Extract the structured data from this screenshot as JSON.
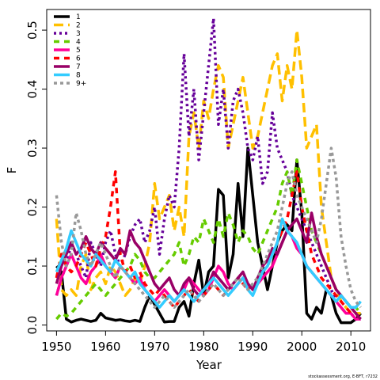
{
  "chart_data": {
    "type": "line",
    "title": "",
    "xlabel": "Year",
    "ylabel": "F",
    "xlim": [
      1948,
      2014
    ],
    "ylim": [
      -0.01,
      0.535
    ],
    "x_ticks": [
      1950,
      1960,
      1970,
      1980,
      1990,
      2000,
      2010
    ],
    "y_ticks": [
      0.0,
      0.1,
      0.2,
      0.3,
      0.4,
      0.5
    ],
    "y_tick_labels": [
      "0.0",
      "0.1",
      "0.2",
      "0.3",
      "0.4",
      "0.5"
    ],
    "legend_position": "top-left",
    "grid": false,
    "credit": "stockassessment.org, E-BFT, r7232",
    "years_start": 1950,
    "series": [
      {
        "name": "1",
        "color": "#000000",
        "dash": "",
        "values": [
          0.1,
          0.09,
          0.01,
          0.005,
          0.008,
          0.01,
          0.008,
          0.006,
          0.008,
          0.02,
          0.012,
          0.01,
          0.008,
          0.009,
          0.007,
          0.006,
          0.008,
          0.006,
          0.03,
          0.05,
          0.035,
          0.02,
          0.005,
          0.006,
          0.006,
          0.03,
          0.04,
          0.015,
          0.07,
          0.11,
          0.05,
          0.09,
          0.1,
          0.23,
          0.22,
          0.08,
          0.12,
          0.24,
          0.15,
          0.3,
          0.22,
          0.14,
          0.1,
          0.06,
          0.1,
          0.14,
          0.16,
          0.17,
          0.16,
          0.28,
          0.19,
          0.02,
          0.01,
          0.03,
          0.02,
          0.06,
          0.05,
          0.02,
          0.004,
          0.004,
          0.004,
          0.01,
          0.02
        ]
      },
      {
        "name": "2",
        "color": "#ffc000",
        "dash": "12,6",
        "values": [
          0.18,
          0.06,
          0.05,
          0.06,
          0.05,
          0.1,
          0.12,
          0.06,
          0.08,
          0.09,
          0.07,
          0.1,
          0.09,
          0.07,
          0.05,
          0.06,
          0.08,
          0.07,
          0.1,
          0.14,
          0.24,
          0.18,
          0.2,
          0.22,
          0.16,
          0.2,
          0.15,
          0.32,
          0.36,
          0.3,
          0.38,
          0.35,
          0.4,
          0.44,
          0.42,
          0.3,
          0.34,
          0.38,
          0.42,
          0.36,
          0.3,
          0.32,
          0.36,
          0.4,
          0.44,
          0.46,
          0.38,
          0.44,
          0.4,
          0.5,
          0.42,
          0.3,
          0.32,
          0.34,
          0.2,
          0.14,
          0.08,
          0.06,
          0.04,
          0.03,
          0.02,
          0.02,
          0.02
        ]
      },
      {
        "name": "3",
        "color": "#660099",
        "dash": "3,4",
        "values": [
          0.05,
          0.08,
          0.1,
          0.14,
          0.12,
          0.1,
          0.08,
          0.14,
          0.12,
          0.1,
          0.14,
          0.16,
          0.12,
          0.1,
          0.12,
          0.15,
          0.17,
          0.18,
          0.14,
          0.16,
          0.2,
          0.12,
          0.18,
          0.22,
          0.2,
          0.3,
          0.46,
          0.32,
          0.4,
          0.28,
          0.36,
          0.44,
          0.52,
          0.34,
          0.4,
          0.3,
          0.38,
          0.4,
          0.36,
          0.3,
          0.28,
          0.32,
          0.24,
          0.26,
          0.36,
          0.3,
          0.28,
          0.26,
          0.22,
          0.2,
          0.18,
          0.16,
          0.14,
          0.12,
          0.1,
          0.08,
          0.06,
          0.04,
          0.03,
          0.02,
          0.02,
          0.01,
          0.01
        ]
      },
      {
        "name": "4",
        "color": "#66cc00",
        "dash": "7,6",
        "values": [
          0.01,
          0.02,
          0.015,
          0.02,
          0.03,
          0.04,
          0.05,
          0.06,
          0.07,
          0.06,
          0.05,
          0.06,
          0.07,
          0.08,
          0.09,
          0.1,
          0.12,
          0.11,
          0.09,
          0.08,
          0.08,
          0.09,
          0.1,
          0.11,
          0.12,
          0.14,
          0.1,
          0.12,
          0.15,
          0.14,
          0.18,
          0.16,
          0.14,
          0.18,
          0.15,
          0.19,
          0.17,
          0.14,
          0.16,
          0.15,
          0.13,
          0.12,
          0.14,
          0.16,
          0.18,
          0.2,
          0.24,
          0.26,
          0.22,
          0.28,
          0.24,
          0.2,
          0.16,
          0.14,
          0.12,
          0.1,
          0.08,
          0.06,
          0.05,
          0.04,
          0.03,
          0.03,
          0.02
        ]
      },
      {
        "name": "5",
        "color": "#ff0099",
        "dash": "",
        "values": [
          0.05,
          0.08,
          0.1,
          0.12,
          0.1,
          0.08,
          0.07,
          0.09,
          0.1,
          0.12,
          0.1,
          0.09,
          0.08,
          0.1,
          0.09,
          0.08,
          0.07,
          0.08,
          0.06,
          0.05,
          0.04,
          0.05,
          0.06,
          0.05,
          0.04,
          0.05,
          0.06,
          0.08,
          0.07,
          0.06,
          0.05,
          0.06,
          0.08,
          0.1,
          0.09,
          0.07,
          0.06,
          0.07,
          0.08,
          0.07,
          0.06,
          0.07,
          0.08,
          0.09,
          0.1,
          0.12,
          0.14,
          0.16,
          0.15,
          0.13,
          0.12,
          0.1,
          0.09,
          0.08,
          0.07,
          0.06,
          0.05,
          0.04,
          0.03,
          0.02,
          0.02,
          0.01,
          0.01
        ]
      },
      {
        "name": "6",
        "color": "#ff0000",
        "dash": "7,6",
        "values": [
          0.08,
          0.12,
          0.1,
          0.09,
          0.1,
          0.12,
          0.14,
          0.12,
          0.1,
          0.13,
          0.15,
          0.2,
          0.26,
          0.12,
          0.09,
          0.1,
          0.08,
          0.09,
          0.07,
          0.06,
          0.05,
          0.06,
          0.05,
          0.04,
          0.03,
          0.04,
          0.05,
          0.06,
          0.05,
          0.04,
          0.05,
          0.06,
          0.07,
          0.06,
          0.05,
          0.06,
          0.07,
          0.08,
          0.07,
          0.06,
          0.07,
          0.08,
          0.09,
          0.1,
          0.12,
          0.14,
          0.16,
          0.18,
          0.22,
          0.26,
          0.2,
          0.16,
          0.12,
          0.1,
          0.08,
          0.07,
          0.06,
          0.05,
          0.04,
          0.03,
          0.02,
          0.02,
          0.01
        ]
      },
      {
        "name": "7",
        "color": "#990066",
        "dash": "",
        "values": [
          0.07,
          0.1,
          0.12,
          0.14,
          0.12,
          0.13,
          0.15,
          0.13,
          0.12,
          0.14,
          0.13,
          0.12,
          0.11,
          0.13,
          0.12,
          0.16,
          0.14,
          0.13,
          0.11,
          0.09,
          0.07,
          0.06,
          0.07,
          0.08,
          0.06,
          0.05,
          0.07,
          0.08,
          0.06,
          0.05,
          0.06,
          0.07,
          0.09,
          0.08,
          0.07,
          0.06,
          0.07,
          0.08,
          0.09,
          0.07,
          0.06,
          0.08,
          0.1,
          0.11,
          0.13,
          0.12,
          0.14,
          0.16,
          0.17,
          0.18,
          0.16,
          0.14,
          0.19,
          0.15,
          0.12,
          0.1,
          0.08,
          0.06,
          0.05,
          0.04,
          0.03,
          0.02,
          0.01
        ]
      },
      {
        "name": "8",
        "color": "#33ccff",
        "dash": "",
        "values": [
          0.09,
          0.11,
          0.13,
          0.16,
          0.14,
          0.12,
          0.11,
          0.1,
          0.12,
          0.11,
          0.1,
          0.09,
          0.11,
          0.1,
          0.09,
          0.08,
          0.09,
          0.07,
          0.06,
          0.05,
          0.04,
          0.03,
          0.04,
          0.05,
          0.04,
          0.05,
          0.06,
          0.05,
          0.04,
          0.05,
          0.06,
          0.07,
          0.08,
          0.07,
          0.06,
          0.05,
          0.06,
          0.07,
          0.08,
          0.06,
          0.05,
          0.07,
          0.09,
          0.1,
          0.12,
          0.14,
          0.18,
          0.16,
          0.15,
          0.14,
          0.12,
          0.1,
          0.09,
          0.08,
          0.07,
          0.06,
          0.05,
          0.04,
          0.05,
          0.04,
          0.03,
          0.03,
          0.04
        ]
      },
      {
        "name": "9+",
        "color": "#999999",
        "dash": "4,4",
        "values": [
          0.22,
          0.14,
          0.1,
          0.12,
          0.19,
          0.16,
          0.12,
          0.1,
          0.12,
          0.14,
          0.12,
          0.1,
          0.08,
          0.1,
          0.09,
          0.08,
          0.07,
          0.06,
          0.05,
          0.04,
          0.03,
          0.04,
          0.05,
          0.04,
          0.03,
          0.04,
          0.05,
          0.06,
          0.05,
          0.04,
          0.05,
          0.06,
          0.07,
          0.06,
          0.05,
          0.06,
          0.07,
          0.08,
          0.07,
          0.06,
          0.07,
          0.08,
          0.1,
          0.12,
          0.14,
          0.16,
          0.2,
          0.24,
          0.26,
          0.22,
          0.2,
          0.18,
          0.16,
          0.14,
          0.18,
          0.24,
          0.3,
          0.25,
          0.15,
          0.1,
          0.06,
          0.04,
          0.03
        ]
      }
    ]
  }
}
